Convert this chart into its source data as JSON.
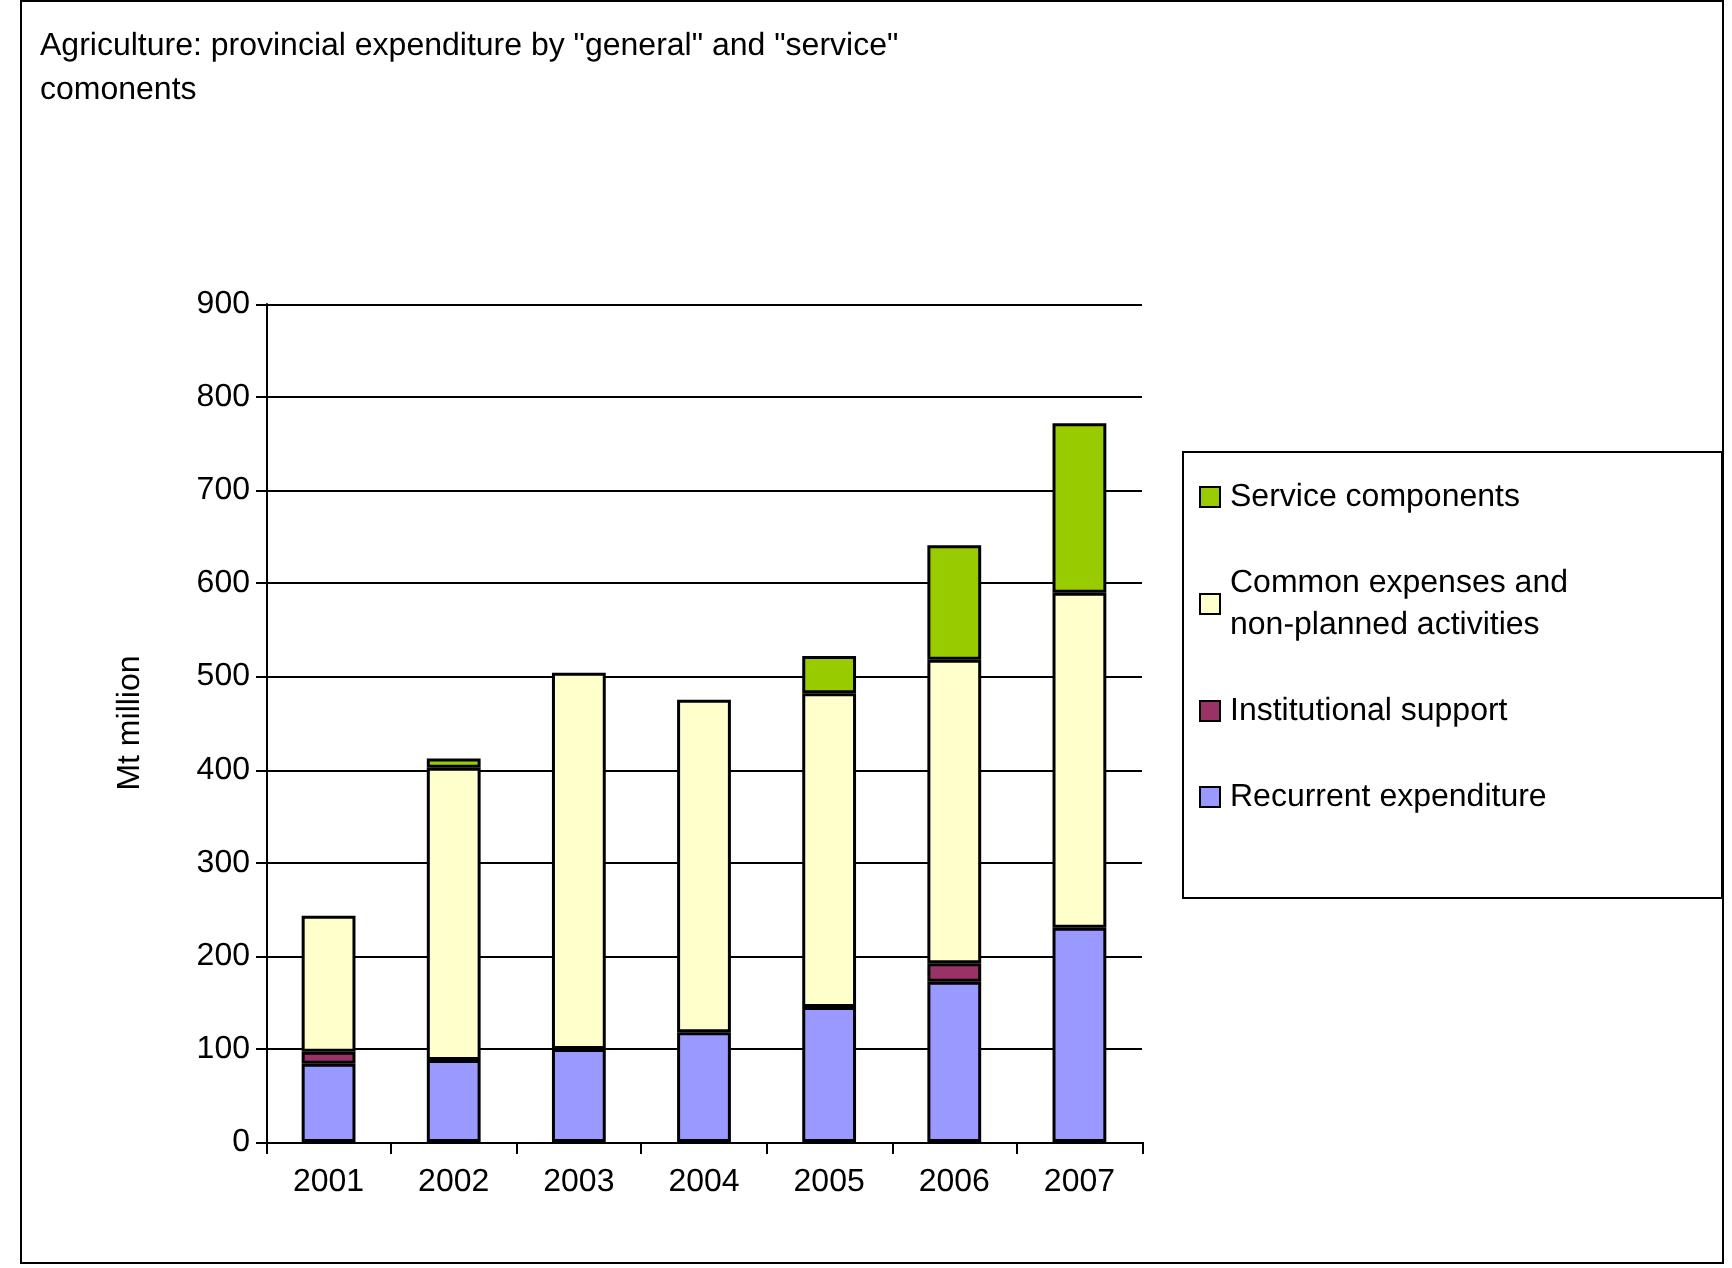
{
  "chart_data": {
    "type": "bar",
    "title": "Agriculture: provincial expenditure by \"general\" and \"service\" comonents",
    "ylabel": "Mt million",
    "categories": [
      "2001",
      "2002",
      "2003",
      "2004",
      "2005",
      "2006",
      "2007"
    ],
    "stacked": true,
    "series": [
      {
        "name": "Recurrent expenditure",
        "color": "#9999ff",
        "values": [
          84,
          88,
          100,
          118,
          145,
          172,
          230
        ]
      },
      {
        "name": "Institutional support",
        "color": "#993366",
        "values": [
          13,
          null,
          null,
          null,
          null,
          20,
          null
        ]
      },
      {
        "name": "Common expenses and non-planned activities",
        "color": "#ffffcc",
        "values": [
          146,
          314,
          404,
          357,
          337,
          326,
          360
        ]
      },
      {
        "name": "Service components",
        "color": "#99cc00",
        "values": [
          null,
          10,
          null,
          null,
          40,
          123,
          182
        ]
      }
    ],
    "ylim": [
      0,
      900
    ],
    "yticks": [
      0,
      100,
      200,
      300,
      400,
      500,
      600,
      700,
      800,
      900
    ],
    "grid": "y",
    "legend": "right"
  }
}
